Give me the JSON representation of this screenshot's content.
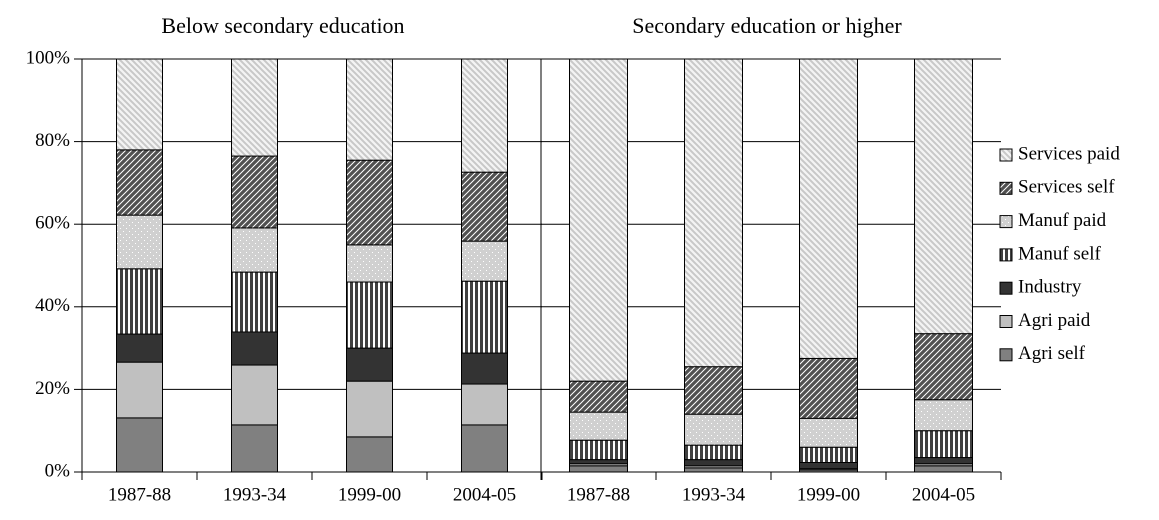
{
  "chart_data": [
    {
      "type": "bar",
      "stacked": true,
      "title": "Below secondary education",
      "categories": [
        "1987-88",
        "1993-34",
        "1999-00",
        "2004-05"
      ],
      "ylim": [
        0,
        100
      ],
      "yticks": [
        {
          "value": 0,
          "label": "0%"
        },
        {
          "value": 20,
          "label": "20%"
        },
        {
          "value": 40,
          "label": "40%"
        },
        {
          "value": 60,
          "label": "60%"
        },
        {
          "value": 80,
          "label": "80%"
        },
        {
          "value": 100,
          "label": "100%"
        }
      ],
      "grid": true,
      "series": [
        {
          "color": "#808080",
          "pattern": "none",
          "values": [
            13.1,
            11.4,
            8.5,
            11.4
          ]
        },
        {
          "color": "#c0c0c0",
          "pattern": "none",
          "values": [
            13.5,
            14.5,
            13.5,
            9.9
          ]
        },
        {
          "color": "#333333",
          "pattern": "none",
          "values": [
            6.8,
            8.0,
            8.0,
            7.5
          ]
        },
        {
          "color": "#404040",
          "pattern": "vertical",
          "values": [
            15.8,
            14.5,
            16.0,
            17.4
          ]
        },
        {
          "color": "#d0d0d0",
          "pattern": "dots",
          "values": [
            13.0,
            10.7,
            9.0,
            9.7
          ]
        },
        {
          "color": "#505050",
          "pattern": "crosshatch",
          "values": [
            15.8,
            17.4,
            20.5,
            16.7
          ]
        },
        {
          "color": "#c8c8c8",
          "pattern": "diagonal",
          "values": [
            22.0,
            23.5,
            24.5,
            27.4
          ]
        }
      ]
    },
    {
      "type": "bar",
      "stacked": true,
      "title": "Secondary education or higher",
      "categories": [
        "1987-88",
        "1993-34",
        "1999-00",
        "2004-05"
      ],
      "ylim": [
        0,
        100
      ],
      "grid": true,
      "legend": "right",
      "series": [
        {
          "name": "Agri self",
          "color": "#808080",
          "pattern": "none",
          "values": [
            1.5,
            1.0,
            0.5,
            1.5
          ]
        },
        {
          "name": "Agri paid",
          "color": "#c0c0c0",
          "pattern": "none",
          "values": [
            0.5,
            0.5,
            0.3,
            0.5
          ]
        },
        {
          "name": "Industry",
          "color": "#333333",
          "pattern": "none",
          "values": [
            1.0,
            1.5,
            1.5,
            1.5
          ]
        },
        {
          "name": "Manuf self",
          "color": "#404040",
          "pattern": "vertical",
          "values": [
            4.7,
            3.5,
            3.7,
            6.5
          ]
        },
        {
          "name": "Manuf paid",
          "color": "#d0d0d0",
          "pattern": "dots",
          "values": [
            6.8,
            7.5,
            7.0,
            7.5
          ]
        },
        {
          "name": "Services self",
          "color": "#505050",
          "pattern": "crosshatch",
          "values": [
            7.5,
            11.5,
            14.5,
            16.0
          ]
        },
        {
          "name": "Services paid",
          "color": "#c8c8c8",
          "pattern": "diagonal",
          "values": [
            78.0,
            74.5,
            72.5,
            66.5
          ]
        }
      ]
    }
  ]
}
